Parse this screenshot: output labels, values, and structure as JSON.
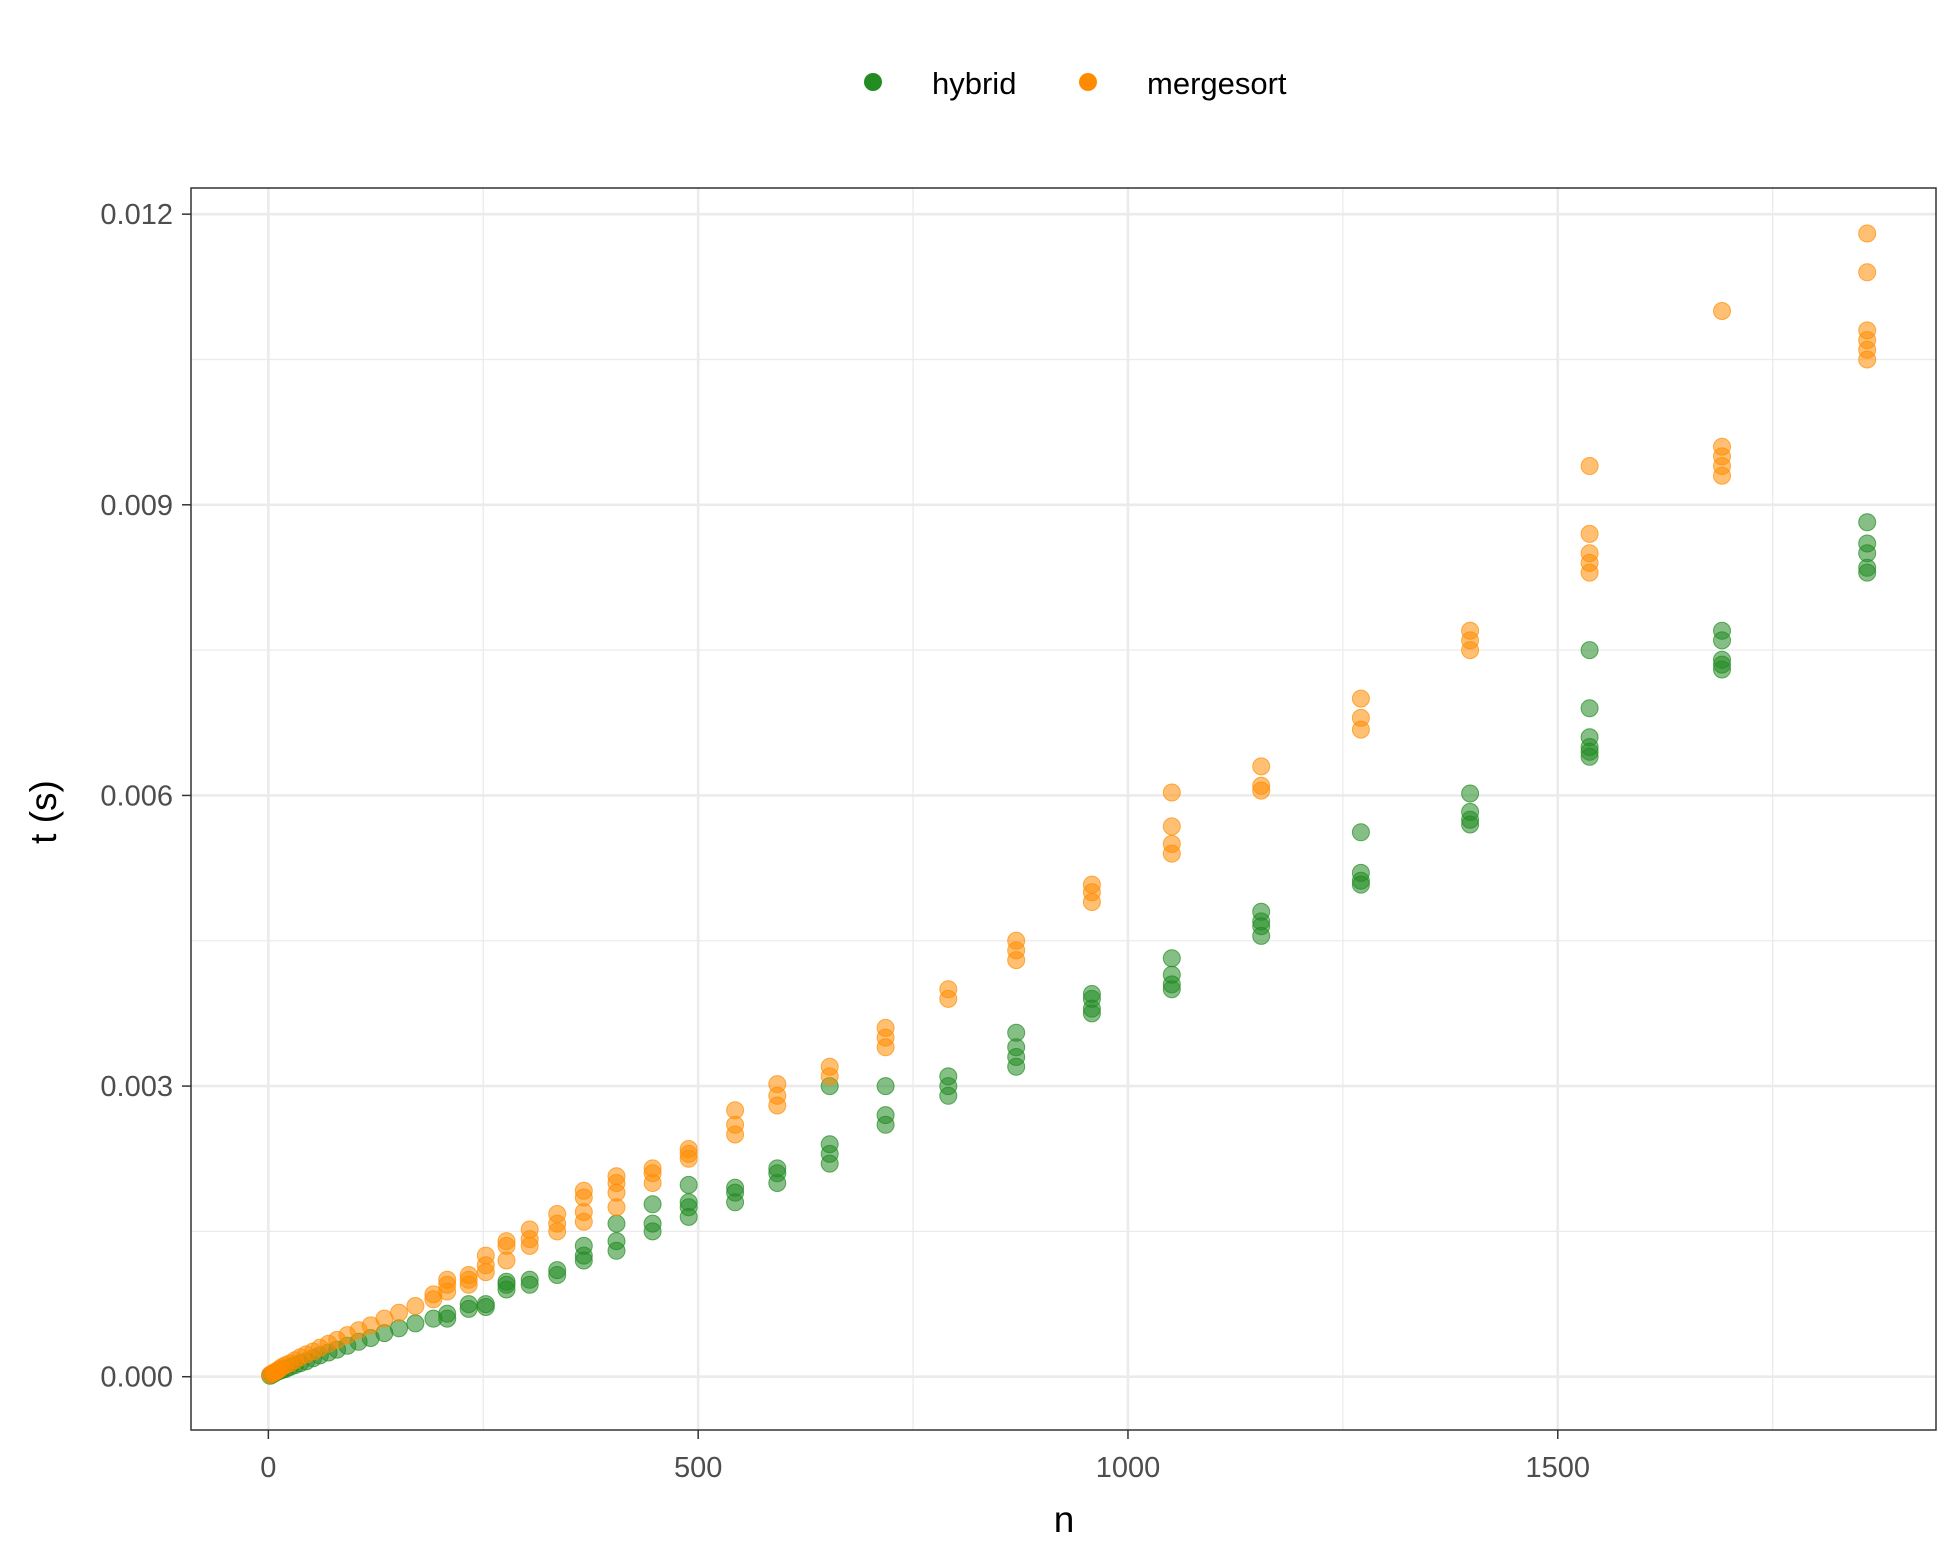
{
  "chart_data": {
    "type": "scatter",
    "xlabel": "n",
    "ylabel": "t (s)",
    "xlim": [
      -90,
      1940
    ],
    "ylim": [
      -0.00055,
      0.01227
    ],
    "x_ticks": [
      0,
      500,
      1000,
      1500
    ],
    "x_tick_labels": [
      "0",
      "500",
      "1000",
      "1500"
    ],
    "y_ticks": [
      0.0,
      0.003,
      0.006,
      0.009,
      0.012
    ],
    "y_tick_labels": [
      "0.000",
      "0.003",
      "0.006",
      "0.009",
      "0.012"
    ],
    "grid": true,
    "legend_position": "top",
    "series": [
      {
        "name": "hybrid",
        "color": "#228B22",
        "points": [
          [
            2,
            1e-05
          ],
          [
            4,
            2e-05
          ],
          [
            6,
            3e-05
          ],
          [
            8,
            4e-05
          ],
          [
            10,
            5e-05
          ],
          [
            13,
            6e-05
          ],
          [
            16,
            7e-05
          ],
          [
            20,
            8e-05
          ],
          [
            25,
            0.0001
          ],
          [
            31,
            0.00012
          ],
          [
            37,
            0.00014
          ],
          [
            44,
            0.00016
          ],
          [
            52,
            0.00019
          ],
          [
            60,
            0.00022
          ],
          [
            70,
            0.00025
          ],
          [
            80,
            0.00028
          ],
          [
            92,
            0.00032
          ],
          [
            105,
            0.00036
          ],
          [
            119,
            0.0004
          ],
          [
            135,
            0.00045
          ],
          [
            152,
            0.0005
          ],
          [
            171,
            0.00055
          ],
          [
            192,
            0.0006
          ],
          [
            208,
            0.0006
          ],
          [
            208,
            0.00065
          ],
          [
            233,
            0.0007
          ],
          [
            233,
            0.00075
          ],
          [
            253,
            0.00075
          ],
          [
            253,
            0.00072
          ],
          [
            277,
            0.0009
          ],
          [
            277,
            0.00095
          ],
          [
            277,
            0.00098
          ],
          [
            304,
            0.00095
          ],
          [
            304,
            0.001
          ],
          [
            336,
            0.00105
          ],
          [
            336,
            0.0011
          ],
          [
            367,
            0.0012
          ],
          [
            367,
            0.00125
          ],
          [
            367,
            0.00135
          ],
          [
            405,
            0.0013
          ],
          [
            405,
            0.0014
          ],
          [
            405,
            0.00158
          ],
          [
            447,
            0.0015
          ],
          [
            447,
            0.00158
          ],
          [
            447,
            0.00178
          ],
          [
            489,
            0.00165
          ],
          [
            489,
            0.00175
          ],
          [
            489,
            0.0018
          ],
          [
            489,
            0.00198
          ],
          [
            543,
            0.0018
          ],
          [
            543,
            0.0019
          ],
          [
            543,
            0.00195
          ],
          [
            592,
            0.002
          ],
          [
            592,
            0.0021
          ],
          [
            592,
            0.00215
          ],
          [
            653,
            0.0022
          ],
          [
            653,
            0.0023
          ],
          [
            653,
            0.0024
          ],
          [
            653,
            0.003
          ],
          [
            718,
            0.0026
          ],
          [
            718,
            0.0027
          ],
          [
            718,
            0.003
          ],
          [
            791,
            0.0029
          ],
          [
            791,
            0.003
          ],
          [
            791,
            0.0031
          ],
          [
            870,
            0.0032
          ],
          [
            870,
            0.0033
          ],
          [
            870,
            0.0034
          ],
          [
            870,
            0.00355
          ],
          [
            958,
            0.00375
          ],
          [
            958,
            0.0038
          ],
          [
            958,
            0.0039
          ],
          [
            958,
            0.00395
          ],
          [
            1051,
            0.004
          ],
          [
            1051,
            0.00405
          ],
          [
            1051,
            0.00415
          ],
          [
            1051,
            0.00432
          ],
          [
            1155,
            0.00455
          ],
          [
            1155,
            0.00465
          ],
          [
            1155,
            0.0047
          ],
          [
            1155,
            0.0048
          ],
          [
            1271,
            0.00508
          ],
          [
            1271,
            0.00512
          ],
          [
            1271,
            0.0052
          ],
          [
            1271,
            0.00562
          ],
          [
            1398,
            0.0057
          ],
          [
            1398,
            0.00575
          ],
          [
            1398,
            0.00583
          ],
          [
            1398,
            0.00602
          ],
          [
            1537,
            0.0064
          ],
          [
            1537,
            0.00645
          ],
          [
            1537,
            0.0065
          ],
          [
            1537,
            0.0066
          ],
          [
            1537,
            0.0069
          ],
          [
            1537,
            0.0075
          ],
          [
            1691,
            0.0073
          ],
          [
            1691,
            0.00735
          ],
          [
            1691,
            0.0074
          ],
          [
            1691,
            0.0076
          ],
          [
            1691,
            0.0077
          ],
          [
            1860,
            0.0083
          ],
          [
            1860,
            0.00835
          ],
          [
            1860,
            0.0085
          ],
          [
            1860,
            0.0086
          ],
          [
            1860,
            0.00882
          ]
        ]
      },
      {
        "name": "mergesort",
        "color": "#FF8C00",
        "points": [
          [
            2,
            2e-05
          ],
          [
            4,
            3e-05
          ],
          [
            6,
            4e-05
          ],
          [
            8,
            5e-05
          ],
          [
            10,
            6e-05
          ],
          [
            13,
            8e-05
          ],
          [
            16,
            0.0001
          ],
          [
            20,
            0.00012
          ],
          [
            25,
            0.00014
          ],
          [
            31,
            0.00017
          ],
          [
            37,
            0.0002
          ],
          [
            44,
            0.00023
          ],
          [
            52,
            0.00026
          ],
          [
            60,
            0.0003
          ],
          [
            70,
            0.00034
          ],
          [
            80,
            0.00038
          ],
          [
            92,
            0.00043
          ],
          [
            105,
            0.00048
          ],
          [
            119,
            0.00053
          ],
          [
            135,
            0.0006
          ],
          [
            152,
            0.00066
          ],
          [
            171,
            0.00073
          ],
          [
            192,
            0.0008
          ],
          [
            192,
            0.00085
          ],
          [
            208,
            0.00088
          ],
          [
            208,
            0.00095
          ],
          [
            208,
            0.001
          ],
          [
            233,
            0.00095
          ],
          [
            233,
            0.001
          ],
          [
            233,
            0.00105
          ],
          [
            253,
            0.00108
          ],
          [
            253,
            0.00115
          ],
          [
            253,
            0.00125
          ],
          [
            277,
            0.0012
          ],
          [
            277,
            0.00135
          ],
          [
            277,
            0.0014
          ],
          [
            304,
            0.00135
          ],
          [
            304,
            0.00142
          ],
          [
            304,
            0.00152
          ],
          [
            336,
            0.0015
          ],
          [
            336,
            0.00158
          ],
          [
            336,
            0.00168
          ],
          [
            367,
            0.0016
          ],
          [
            367,
            0.0017
          ],
          [
            367,
            0.00185
          ],
          [
            367,
            0.00192
          ],
          [
            405,
            0.00175
          ],
          [
            405,
            0.0019
          ],
          [
            405,
            0.002
          ],
          [
            405,
            0.00207
          ],
          [
            447,
            0.002
          ],
          [
            447,
            0.0021
          ],
          [
            447,
            0.00215
          ],
          [
            489,
            0.00225
          ],
          [
            489,
            0.0023
          ],
          [
            489,
            0.00235
          ],
          [
            543,
            0.0025
          ],
          [
            543,
            0.0026
          ],
          [
            543,
            0.00275
          ],
          [
            592,
            0.0028
          ],
          [
            592,
            0.0029
          ],
          [
            592,
            0.00302
          ],
          [
            653,
            0.0031
          ],
          [
            653,
            0.0032
          ],
          [
            718,
            0.0034
          ],
          [
            718,
            0.0035
          ],
          [
            718,
            0.0036
          ],
          [
            791,
            0.0039
          ],
          [
            791,
            0.004
          ],
          [
            870,
            0.0043
          ],
          [
            870,
            0.0044
          ],
          [
            870,
            0.0045
          ],
          [
            958,
            0.0049
          ],
          [
            958,
            0.005
          ],
          [
            958,
            0.00508
          ],
          [
            1051,
            0.0054
          ],
          [
            1051,
            0.0055
          ],
          [
            1051,
            0.00568
          ],
          [
            1051,
            0.00603
          ],
          [
            1155,
            0.00605
          ],
          [
            1155,
            0.0061
          ],
          [
            1155,
            0.0063
          ],
          [
            1271,
            0.00668
          ],
          [
            1271,
            0.0068
          ],
          [
            1271,
            0.007
          ],
          [
            1398,
            0.0075
          ],
          [
            1398,
            0.0076
          ],
          [
            1398,
            0.0077
          ],
          [
            1537,
            0.0083
          ],
          [
            1537,
            0.0084
          ],
          [
            1537,
            0.0085
          ],
          [
            1537,
            0.0087
          ],
          [
            1537,
            0.0094
          ],
          [
            1691,
            0.0093
          ],
          [
            1691,
            0.0094
          ],
          [
            1691,
            0.0095
          ],
          [
            1691,
            0.0096
          ],
          [
            1691,
            0.011
          ],
          [
            1860,
            0.0105
          ],
          [
            1860,
            0.0106
          ],
          [
            1860,
            0.0107
          ],
          [
            1860,
            0.0108
          ],
          [
            1860,
            0.0114
          ],
          [
            1860,
            0.0118
          ]
        ]
      }
    ]
  }
}
